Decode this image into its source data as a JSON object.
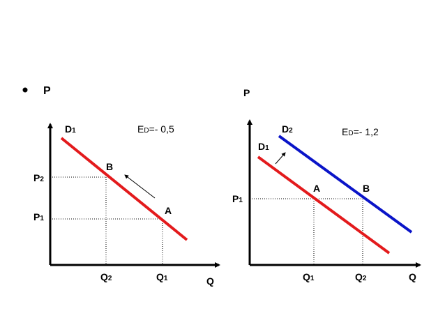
{
  "title": "P",
  "left": {
    "curve": {
      "main": "D",
      "sub": "1"
    },
    "elasticity": {
      "main": "E",
      "sub": "D",
      "rest": "=- 0,5"
    },
    "points": [
      "B",
      "A"
    ],
    "price_labels": [
      {
        "main": "P",
        "sub": "2"
      },
      {
        "main": "P",
        "sub": "1"
      }
    ],
    "quantity_labels": [
      {
        "main": "Q",
        "sub": "2"
      },
      {
        "main": "Q",
        "sub": "1"
      }
    ],
    "x_axis": "Q"
  },
  "right": {
    "y_axis": "P",
    "curves": [
      {
        "main": "D",
        "sub": "2"
      },
      {
        "main": "D",
        "sub": "1"
      }
    ],
    "elasticity": {
      "main": "E",
      "sub": "D",
      "rest": "=- 1,2"
    },
    "points": [
      "A",
      "B"
    ],
    "price_labels": [
      {
        "main": "P",
        "sub": "1"
      }
    ],
    "quantity_labels": [
      {
        "main": "Q",
        "sub": "1"
      },
      {
        "main": "Q",
        "sub": "2"
      }
    ],
    "x_axis": "Q"
  }
}
